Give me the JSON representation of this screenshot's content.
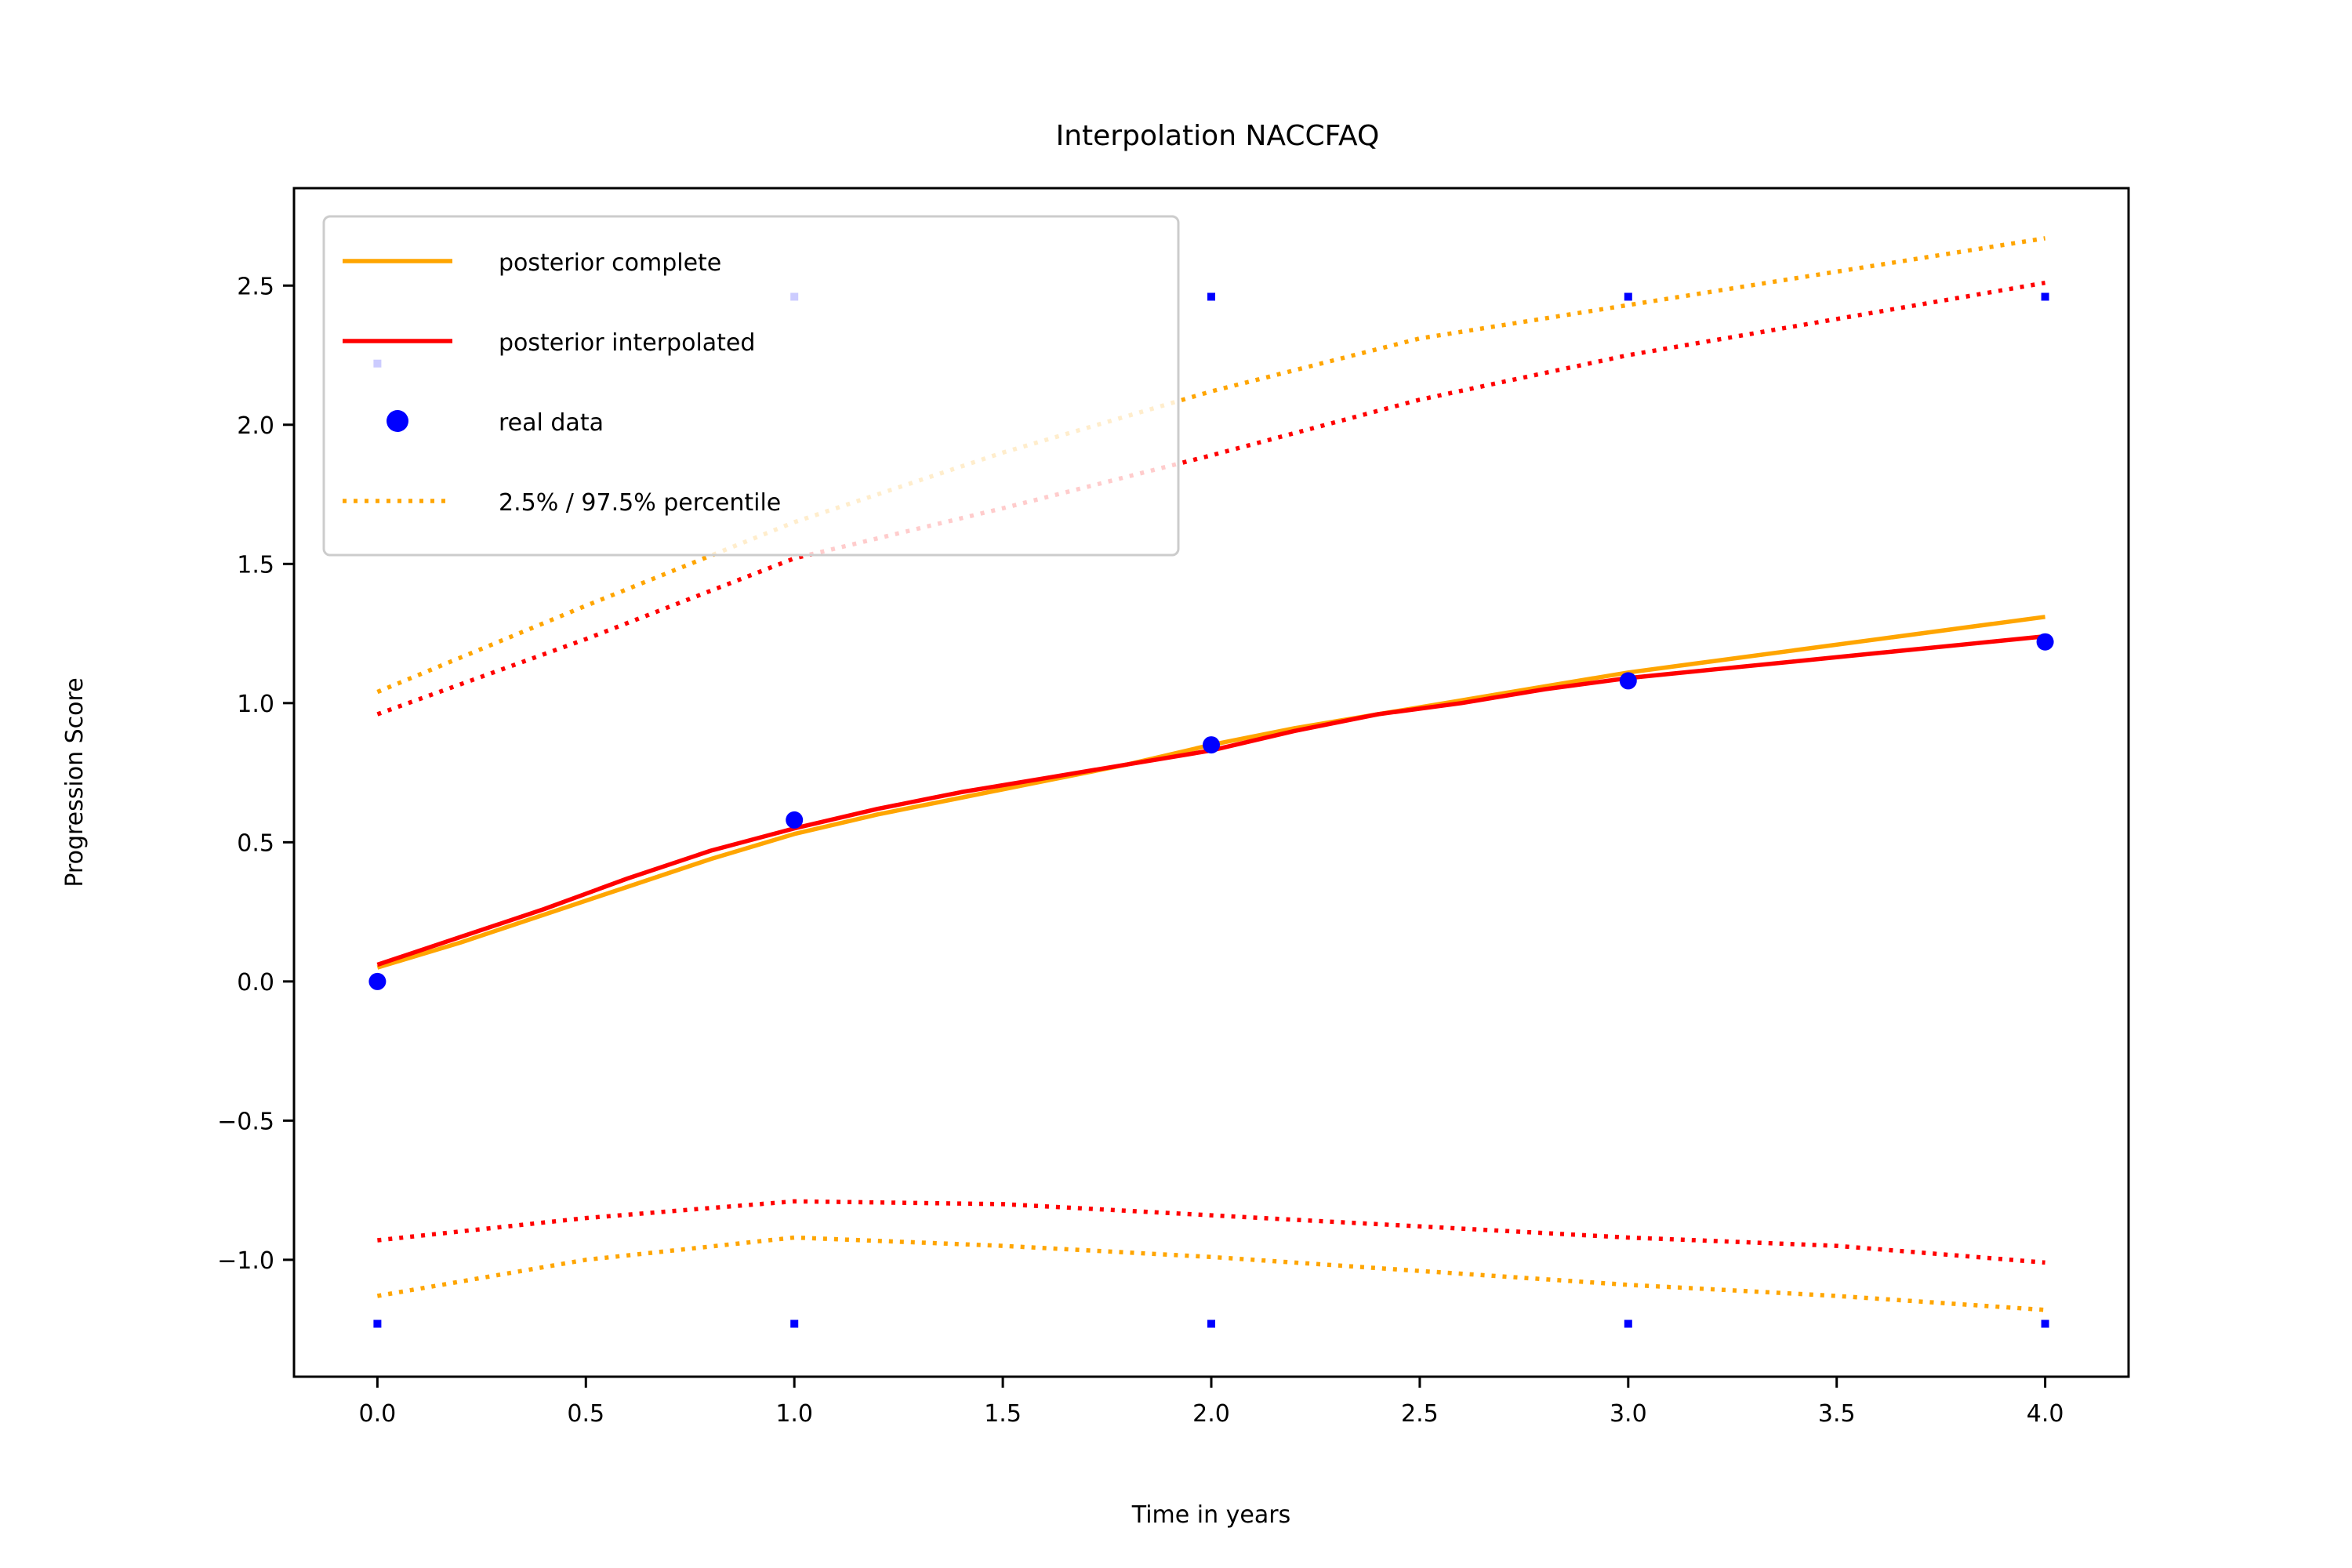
{
  "chart_data": {
    "type": "line",
    "title": "Interpolation NACCFAQ",
    "xlabel": "Time in years",
    "ylabel": "Progression Score",
    "xlim": [
      -0.2,
      4.2
    ],
    "ylim": [
      -1.42,
      2.85
    ],
    "xticks": [
      0.0,
      0.5,
      1.0,
      1.5,
      2.0,
      2.5,
      3.0,
      3.5,
      4.0
    ],
    "xtick_labels": [
      "0.0",
      "0.5",
      "1.0",
      "1.5",
      "2.0",
      "2.5",
      "3.0",
      "3.5",
      "4.0"
    ],
    "yticks": [
      -1.0,
      -0.5,
      0.0,
      0.5,
      1.0,
      1.5,
      2.0,
      2.5
    ],
    "ytick_labels": [
      "−1.0",
      "−0.5",
      "0.0",
      "0.5",
      "1.0",
      "1.5",
      "2.0",
      "2.5"
    ],
    "grid": false,
    "legend_position": "top-left",
    "colors": {
      "complete": "#ffa500",
      "interpolated": "#ff0000",
      "real": "#0000ff"
    },
    "series": [
      {
        "name": "posterior complete",
        "style": "solid",
        "color": "#ffa500",
        "x": [
          0,
          0.2,
          0.4,
          0.6,
          0.8,
          1.0,
          1.2,
          1.4,
          1.6,
          1.8,
          2.0,
          2.2,
          2.4,
          2.6,
          2.8,
          3.0,
          3.2,
          3.4,
          3.6,
          3.8,
          4.0
        ],
        "y": [
          0.05,
          0.14,
          0.24,
          0.34,
          0.44,
          0.53,
          0.6,
          0.66,
          0.72,
          0.78,
          0.85,
          0.91,
          0.96,
          1.01,
          1.06,
          1.11,
          1.15,
          1.19,
          1.23,
          1.27,
          1.31
        ]
      },
      {
        "name": "posterior interpolated",
        "style": "solid",
        "color": "#ff0000",
        "x": [
          0,
          0.2,
          0.4,
          0.6,
          0.8,
          1.0,
          1.2,
          1.4,
          1.6,
          1.8,
          2.0,
          2.2,
          2.4,
          2.6,
          2.8,
          3.0,
          3.2,
          3.4,
          3.6,
          3.8,
          4.0
        ],
        "y": [
          0.06,
          0.16,
          0.26,
          0.37,
          0.47,
          0.55,
          0.62,
          0.68,
          0.73,
          0.78,
          0.83,
          0.9,
          0.96,
          1.0,
          1.05,
          1.09,
          1.12,
          1.15,
          1.18,
          1.21,
          1.24
        ]
      },
      {
        "name": "real data",
        "style": "points",
        "color": "#0000ff",
        "x": [
          0,
          1,
          2,
          3,
          4
        ],
        "y": [
          0.0,
          0.58,
          0.85,
          1.08,
          1.22
        ]
      },
      {
        "name": "2.5% / 97.5% percentile",
        "style": "dotted",
        "color": "#ffa500",
        "x": [
          0,
          0.5,
          1.0,
          1.5,
          2.0,
          2.5,
          3.0,
          3.5,
          4.0
        ],
        "y": [
          1.04,
          1.35,
          1.65,
          1.9,
          2.12,
          2.31,
          2.43,
          2.55,
          2.67
        ]
      },
      {
        "style": "dotted",
        "color": "#ffa500",
        "x": [
          0,
          0.5,
          1.0,
          1.5,
          2.0,
          2.5,
          3.0,
          3.5,
          4.0
        ],
        "y": [
          -1.13,
          -1.0,
          -0.92,
          -0.95,
          -0.99,
          -1.04,
          -1.09,
          -1.13,
          -1.18
        ]
      },
      {
        "style": "dotted",
        "color": "#ff0000",
        "x": [
          0,
          0.5,
          1.0,
          1.5,
          2.0,
          2.5,
          3.0,
          3.5,
          4.0
        ],
        "y": [
          0.96,
          1.23,
          1.52,
          1.7,
          1.89,
          2.09,
          2.25,
          2.38,
          2.51
        ]
      },
      {
        "style": "dotted",
        "color": "#ff0000",
        "x": [
          0,
          0.5,
          1.0,
          1.5,
          2.0,
          2.5,
          3.0,
          3.5,
          4.0
        ],
        "y": [
          -0.93,
          -0.85,
          -0.79,
          -0.8,
          -0.84,
          -0.88,
          -0.92,
          -0.95,
          -1.01
        ]
      },
      {
        "style": "small-markers",
        "color": "#0000ff",
        "x": [
          0,
          1,
          2,
          3,
          4,
          0,
          1,
          2,
          3,
          4
        ],
        "y": [
          -1.23,
          -1.23,
          -1.23,
          -1.23,
          -1.23,
          2.22,
          2.46,
          2.46,
          2.46,
          2.46
        ]
      }
    ]
  }
}
